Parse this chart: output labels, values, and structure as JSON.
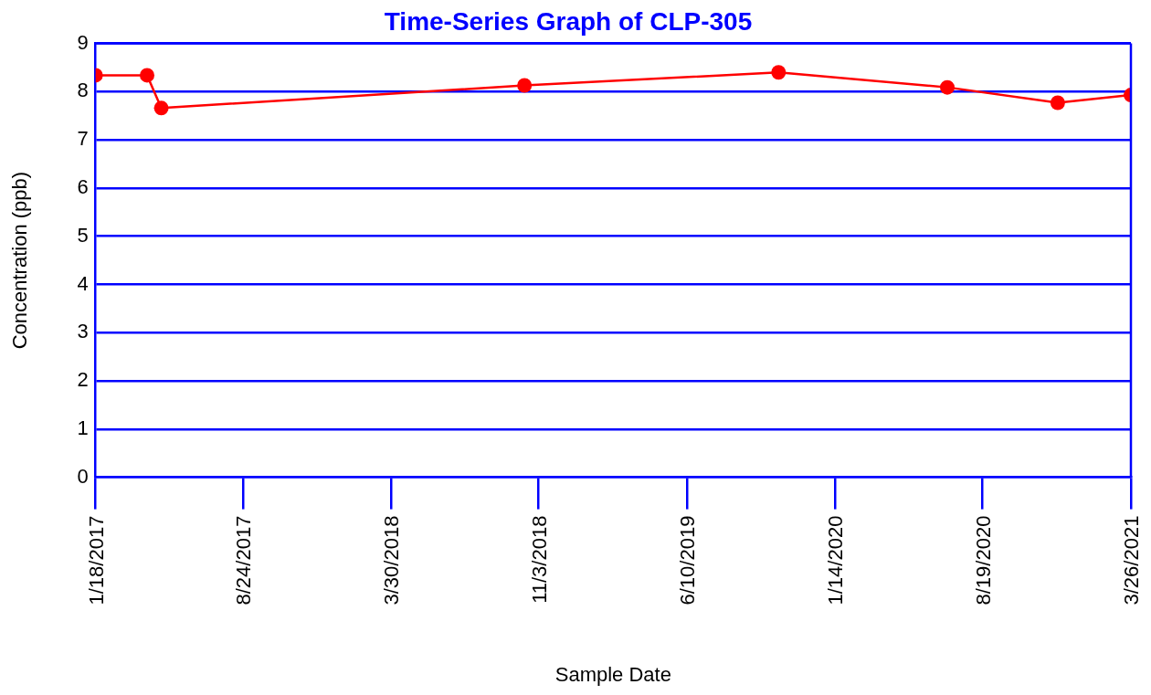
{
  "chart_data": {
    "type": "line",
    "title": "Time-Series Graph of CLP-305",
    "xlabel": "Sample Date",
    "ylabel": "Concentration (ppb)",
    "x": [
      "2017-01-18",
      "2017-04-04",
      "2017-04-25",
      "2018-10-13",
      "2019-10-23",
      "2020-06-28",
      "2020-12-08",
      "2021-03-26"
    ],
    "series": [
      {
        "color": "#ff0000",
        "values": [
          8.34,
          8.34,
          7.66,
          8.13,
          8.4,
          8.09,
          7.77,
          7.93
        ]
      }
    ],
    "xlim": [
      "2017-01-18",
      "2021-03-26"
    ],
    "xticks": [
      {
        "value": "2017-01-18",
        "label": "1/18/2017"
      },
      {
        "value": "2017-08-24",
        "label": "8/24/2017"
      },
      {
        "value": "2018-03-30",
        "label": "3/30/2018"
      },
      {
        "value": "2018-11-03",
        "label": "11/3/2018"
      },
      {
        "value": "2019-06-10",
        "label": "6/10/2019"
      },
      {
        "value": "2020-01-14",
        "label": "1/14/2020"
      },
      {
        "value": "2020-08-19",
        "label": "8/19/2020"
      },
      {
        "value": "2021-03-26",
        "label": "3/26/2021"
      }
    ],
    "ylim": [
      0,
      9
    ],
    "yticks": [
      0,
      1,
      2,
      3,
      4,
      5,
      6,
      7,
      8,
      9
    ],
    "grid": "y",
    "legend": false,
    "marker": "circle",
    "line_style": "solid"
  }
}
